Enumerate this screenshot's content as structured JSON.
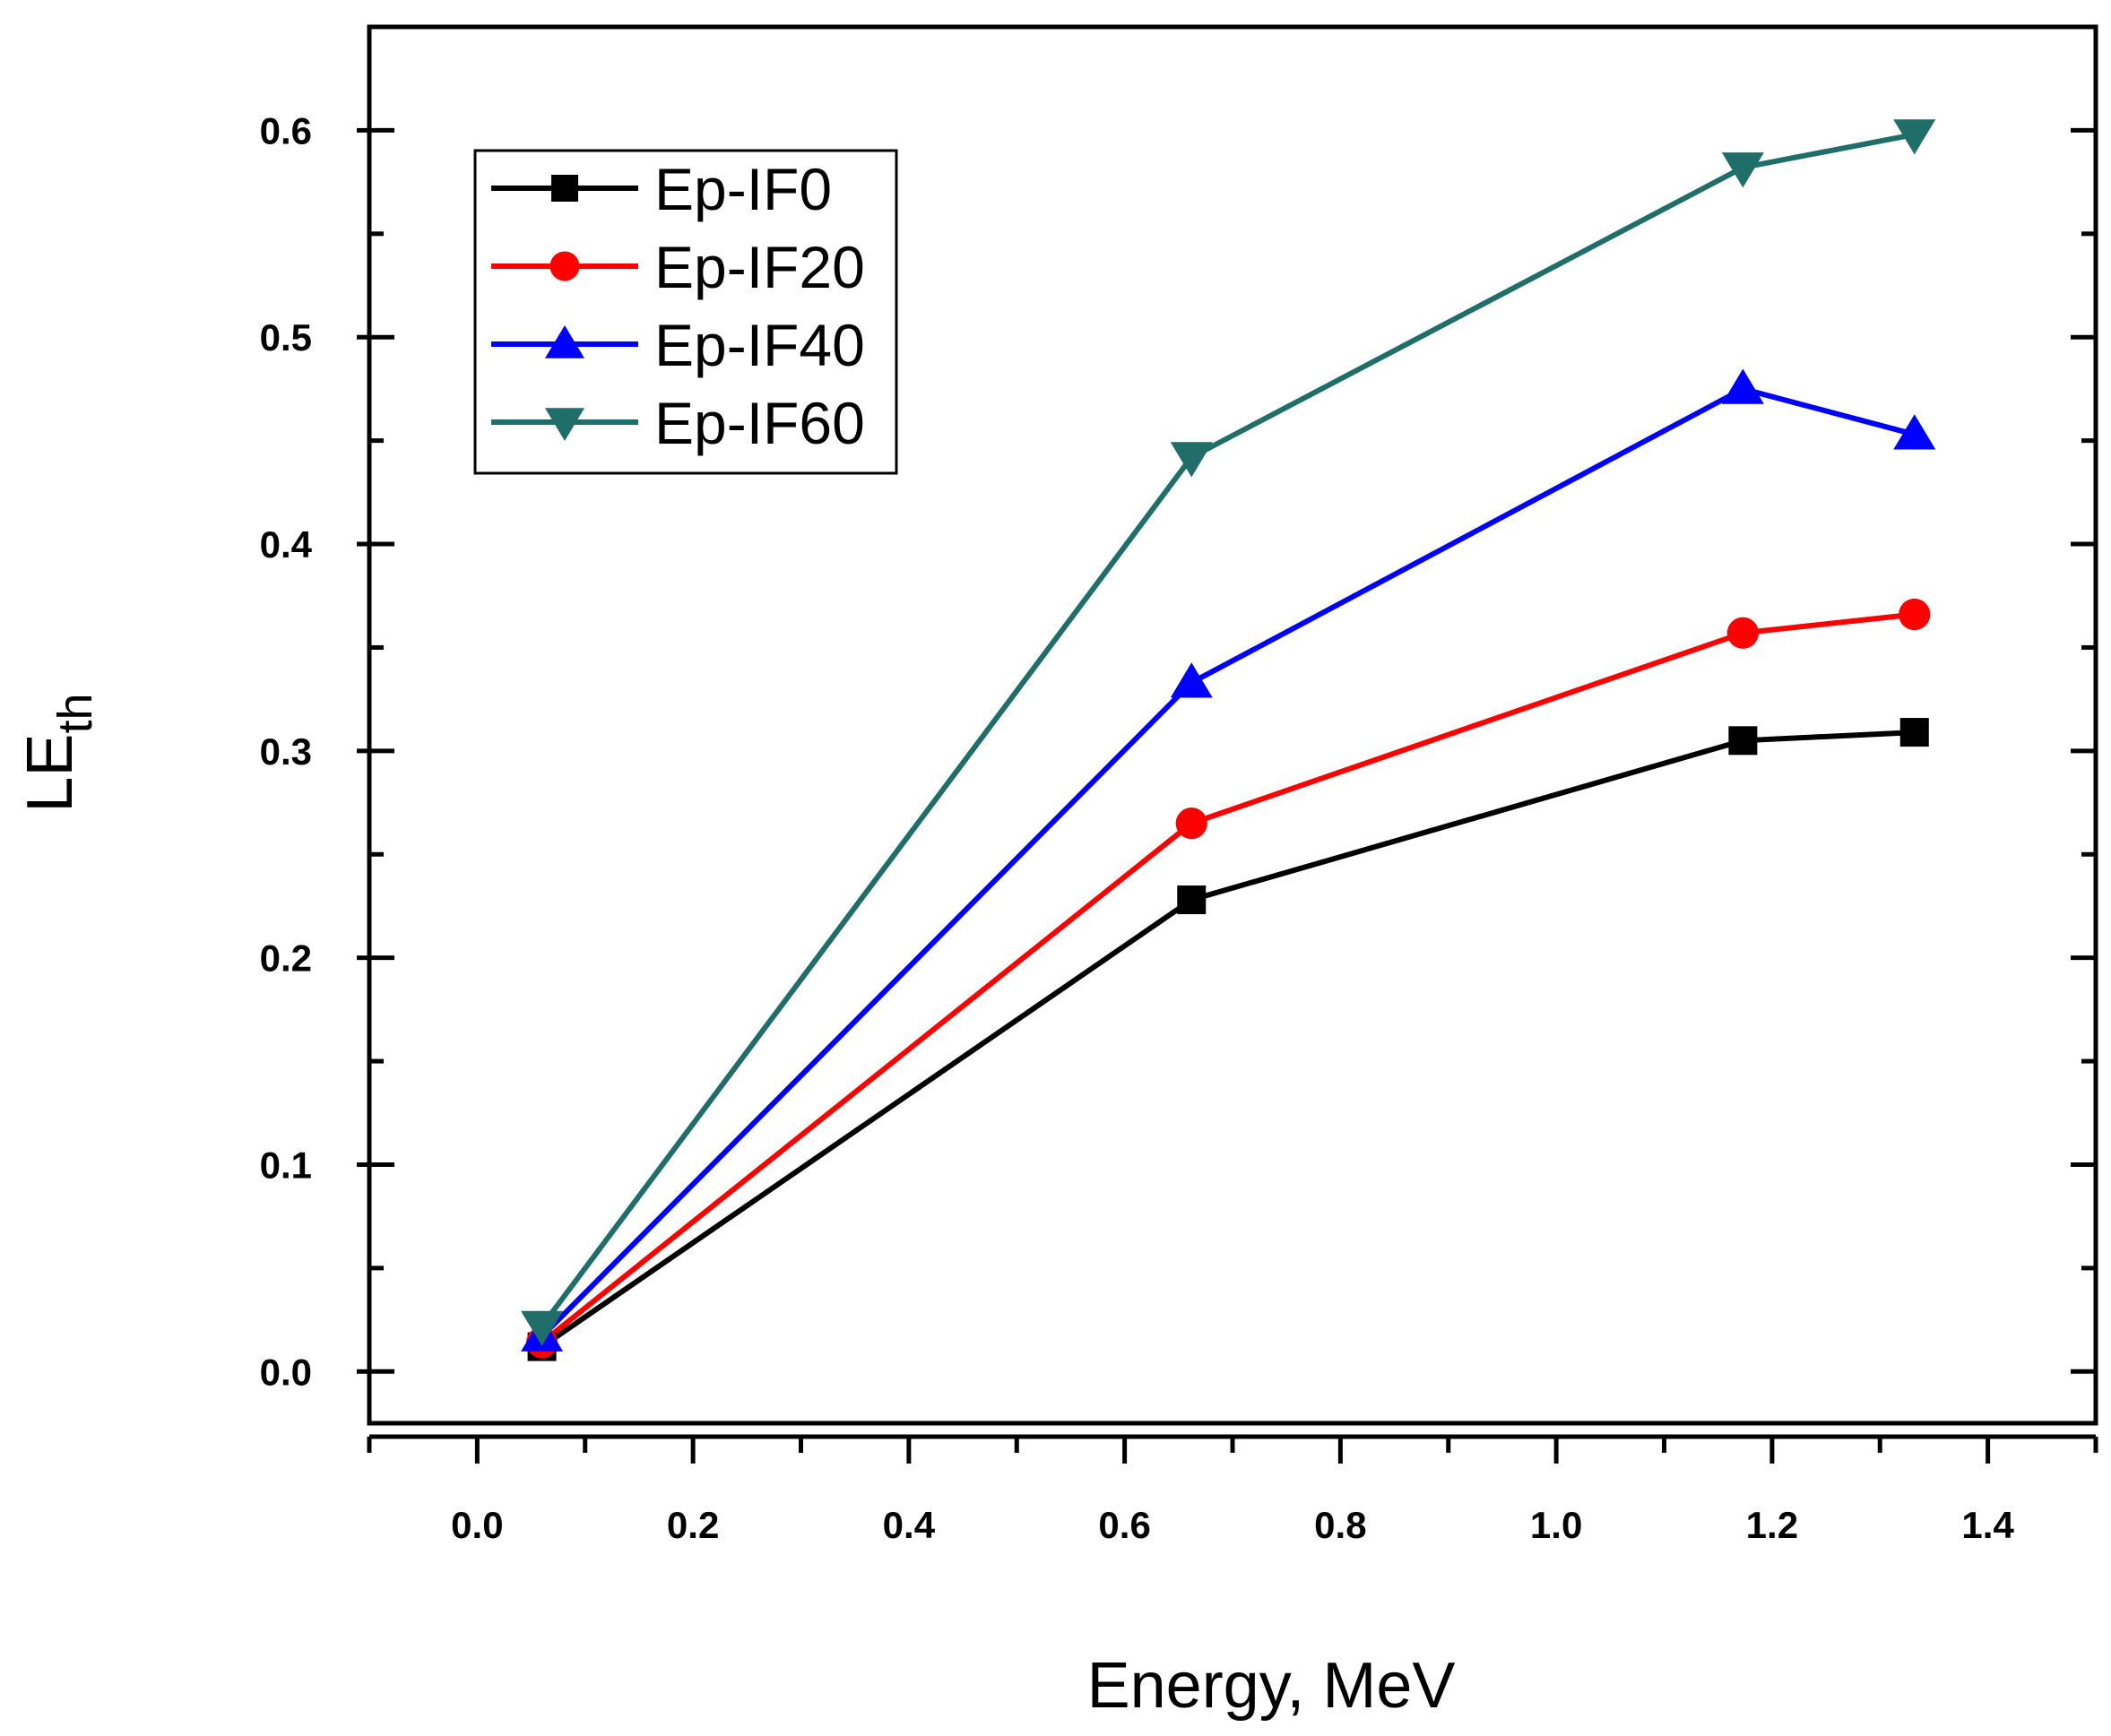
{
  "chart_data": {
    "type": "line",
    "title": "",
    "xlabel": "Energy, MeV",
    "ylabel": "LE",
    "ylabel_subscript": "th",
    "xlim": [
      -0.1,
      1.5
    ],
    "ylim": [
      -0.025,
      0.65
    ],
    "x_ticks": [
      "0.0",
      "0.2",
      "0.4",
      "0.6",
      "0.8",
      "1.0",
      "1.2",
      "1.4"
    ],
    "y_ticks": [
      "0.0",
      "0.1",
      "0.2",
      "0.3",
      "0.4",
      "0.5",
      "0.6"
    ],
    "x": [
      0.06,
      0.662,
      1.173,
      1.332
    ],
    "grid": false,
    "legend_position": "top-left",
    "series": [
      {
        "name": "Ep-IF0",
        "color": "#000000",
        "marker": "square",
        "values": [
          0.012,
          0.228,
          0.305,
          0.309
        ]
      },
      {
        "name": "Ep-IF20",
        "color": "#ff0000",
        "marker": "circle",
        "values": [
          0.014,
          0.265,
          0.357,
          0.366
        ]
      },
      {
        "name": "Ep-IF40",
        "color": "#0000ff",
        "marker": "triangle-up",
        "values": [
          0.017,
          0.333,
          0.475,
          0.453
        ]
      },
      {
        "name": "Ep-IF60",
        "color": "#1f6e6a",
        "marker": "triangle-down",
        "values": [
          0.022,
          0.442,
          0.582,
          0.598
        ]
      }
    ]
  }
}
